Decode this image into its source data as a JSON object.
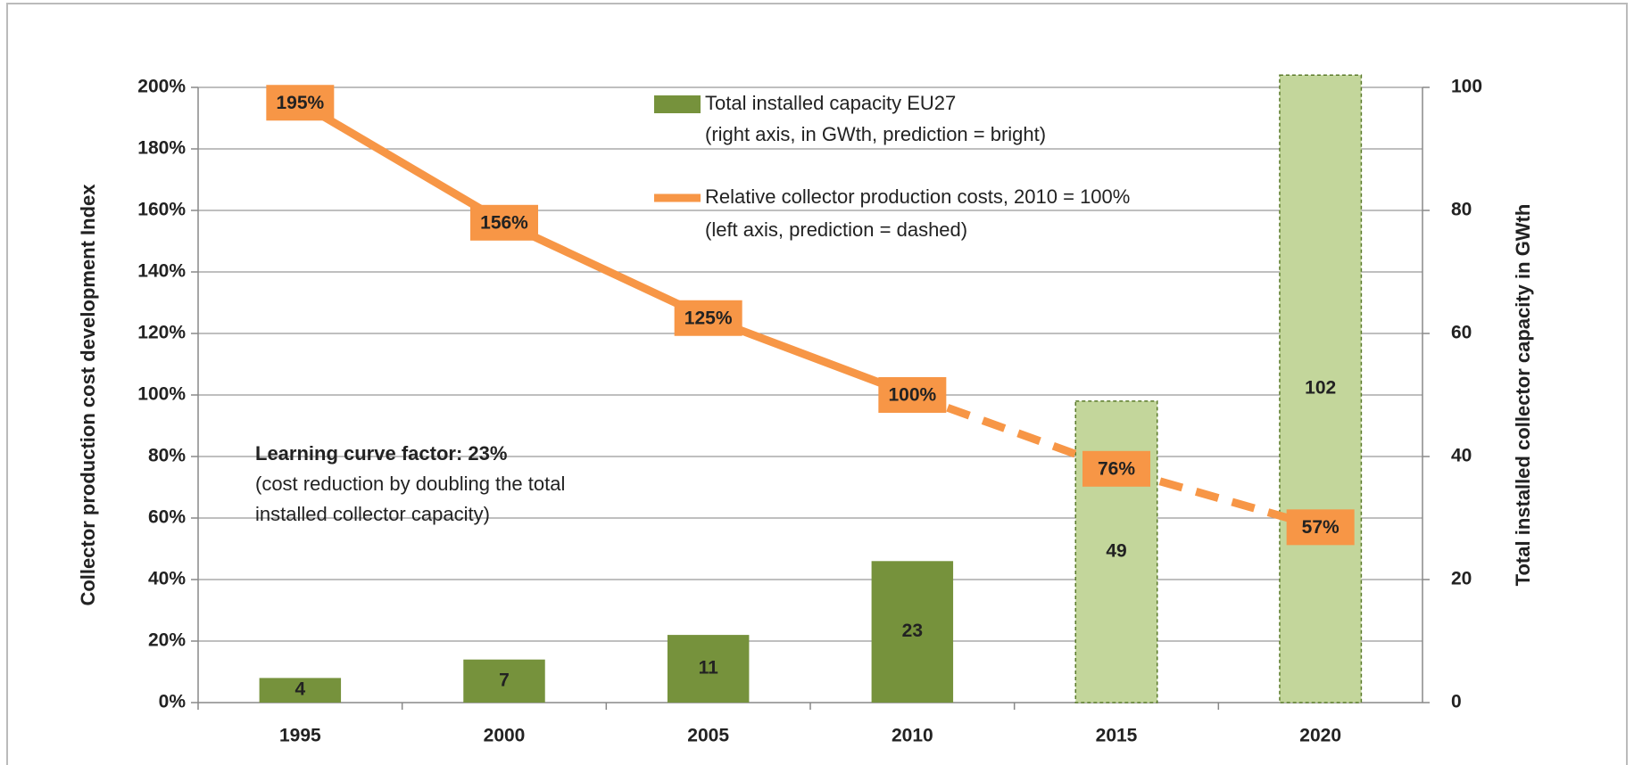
{
  "chart_data": {
    "type": "bar_line",
    "categories": [
      "1995",
      "2000",
      "2005",
      "2010",
      "2015",
      "2020"
    ],
    "ylabel": "Collector production cost development Index",
    "y2label": "Total installed collector capacity in GWth",
    "ylim": [
      0,
      200
    ],
    "yticks": [
      {
        "value": 0,
        "label": "0%"
      },
      {
        "value": 20,
        "label": "20%"
      },
      {
        "value": 40,
        "label": "40%"
      },
      {
        "value": 60,
        "label": "60%"
      },
      {
        "value": 80,
        "label": "80%"
      },
      {
        "value": 100,
        "label": "100%"
      },
      {
        "value": 120,
        "label": "120%"
      },
      {
        "value": 140,
        "label": "140%"
      },
      {
        "value": 160,
        "label": "160%"
      },
      {
        "value": 180,
        "label": "180%"
      },
      {
        "value": 200,
        "label": "200%"
      }
    ],
    "y2lim": [
      0,
      100
    ],
    "y2ticks": [
      0,
      20,
      40,
      60,
      80,
      100
    ],
    "grid": true,
    "series": [
      {
        "name": "Total installed capacity EU27",
        "note": "(right axis, in GWth, prediction = bright)",
        "type": "bar",
        "axis": "y2",
        "color": "#76923c",
        "colors": [
          "#76923c",
          "#76923c",
          "#76923c",
          "#76923c",
          "#c3d69b",
          "#c3d69b"
        ],
        "values": [
          4,
          7,
          11,
          23,
          49,
          102
        ]
      },
      {
        "name": "Relative collector production costs, 2010 = 100%",
        "note": "(left axis, prediction = dashed)",
        "type": "line",
        "axis": "y",
        "color": "#f79646",
        "dashed": [
          false,
          false,
          false,
          false,
          true,
          true
        ],
        "values": [
          195,
          156,
          125,
          100,
          76,
          57
        ],
        "value_labels": [
          "195%",
          "156%",
          "125%",
          "100%",
          "76%",
          "57%"
        ]
      }
    ],
    "annotation": {
      "title": "Learning curve factor: 23%",
      "lines": [
        "(cost reduction by doubling the total",
        "installed collector capacity)"
      ]
    }
  }
}
